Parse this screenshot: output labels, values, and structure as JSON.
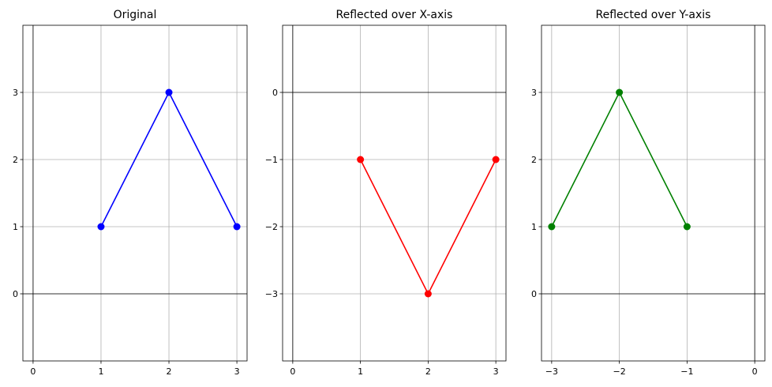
{
  "chart_data": [
    {
      "type": "line",
      "title": "Original",
      "color": "#0000ff",
      "x": [
        1,
        2,
        3
      ],
      "y": [
        1,
        3,
        1
      ],
      "xlim": [
        -0.15,
        3.15
      ],
      "ylim": [
        -1,
        4
      ],
      "xticks": [
        0,
        1,
        2,
        3
      ],
      "yticks": [
        0,
        1,
        2,
        3
      ],
      "xtick_labels": [
        "0",
        "1",
        "2",
        "3"
      ],
      "ytick_labels": [
        "0",
        "1",
        "2",
        "3"
      ],
      "grid": true,
      "marker": "circle"
    },
    {
      "type": "line",
      "title": "Reflected over X-axis",
      "color": "#ff0000",
      "x": [
        1,
        2,
        3
      ],
      "y": [
        -1,
        -3,
        -1
      ],
      "xlim": [
        -0.15,
        3.15
      ],
      "ylim": [
        -4,
        1
      ],
      "xticks": [
        0,
        1,
        2,
        3
      ],
      "yticks": [
        -3,
        -2,
        -1,
        0
      ],
      "xtick_labels": [
        "0",
        "1",
        "2",
        "3"
      ],
      "ytick_labels": [
        "−3",
        "−2",
        "−1",
        "0"
      ],
      "grid": true,
      "marker": "circle"
    },
    {
      "type": "line",
      "title": "Reflected over Y-axis",
      "color": "#008000",
      "x": [
        -3,
        -2,
        -1
      ],
      "y": [
        1,
        3,
        1
      ],
      "xlim": [
        -3.15,
        0.15
      ],
      "ylim": [
        -1,
        4
      ],
      "xticks": [
        -3,
        -2,
        -1,
        0
      ],
      "yticks": [
        0,
        1,
        2,
        3
      ],
      "xtick_labels": [
        "−3",
        "−2",
        "−1",
        "0"
      ],
      "ytick_labels": [
        "0",
        "1",
        "2",
        "3"
      ],
      "grid": true,
      "marker": "circle"
    }
  ]
}
